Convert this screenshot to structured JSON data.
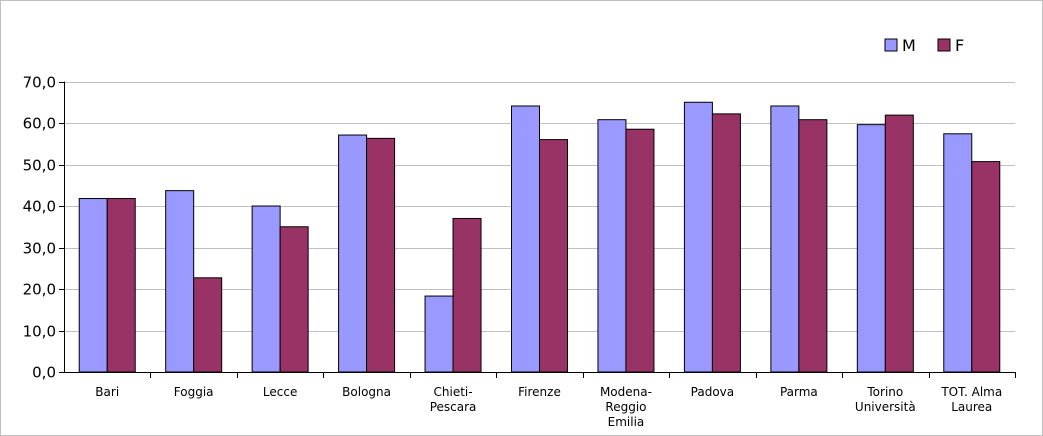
{
  "chart_data": {
    "type": "bar",
    "categories": [
      [
        "Bari"
      ],
      [
        "Foggia"
      ],
      [
        "Lecce"
      ],
      [
        "Bologna"
      ],
      [
        "Chieti-",
        "Pescara"
      ],
      [
        "Firenze"
      ],
      [
        "Modena-",
        "Reggio",
        "Emilia"
      ],
      [
        "Padova"
      ],
      [
        "Parma"
      ],
      [
        "Torino",
        "Università"
      ],
      [
        "TOT. Alma",
        "Laurea"
      ]
    ],
    "series": [
      {
        "name": "M",
        "color": "#9999ff",
        "values": [
          41.8,
          43.7,
          40.0,
          57.1,
          18.3,
          64.1,
          60.8,
          65.0,
          64.1,
          59.6,
          57.4
        ]
      },
      {
        "name": "F",
        "color": "#993366",
        "values": [
          41.8,
          22.7,
          35.0,
          56.3,
          37.0,
          56.0,
          58.5,
          62.2,
          60.8,
          61.9,
          50.7
        ]
      }
    ],
    "yticks": [
      "0,0",
      "10,0",
      "20,0",
      "30,0",
      "40,0",
      "50,0",
      "60,0",
      "70,0"
    ],
    "ylim": [
      0,
      70
    ],
    "grid": true,
    "legend_position": "top-right",
    "title": "",
    "xlabel": "",
    "ylabel": ""
  }
}
